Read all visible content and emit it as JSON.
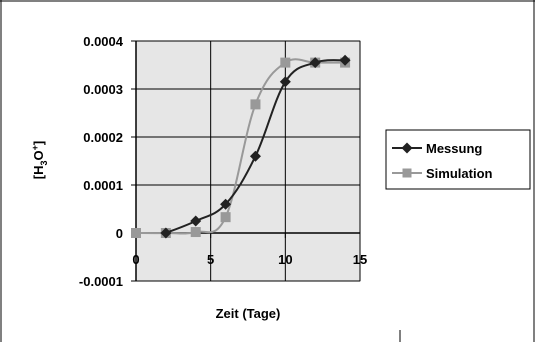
{
  "chart_data": {
    "type": "line",
    "xlabel": "Zeit (Tage)",
    "ylabel_main": "[H",
    "ylabel_sub": "3",
    "ylabel_mid": "O",
    "ylabel_sup": "+",
    "ylabel_end": "]",
    "xlim": [
      0,
      15
    ],
    "ylim": [
      -0.0001,
      0.0004
    ],
    "xticks": [
      0,
      5,
      10,
      15
    ],
    "xtick_labels": [
      "0",
      "5",
      "10",
      "15"
    ],
    "yticks": [
      -0.0001,
      0,
      0.0001,
      0.0002,
      0.0003,
      0.0004
    ],
    "ytick_labels": [
      "-0.0001",
      "0",
      "0.0001",
      "0.0002",
      "0.0003",
      "0.0004"
    ],
    "grid": true,
    "legend_position": "right",
    "series": [
      {
        "name": "Messung",
        "color": "#222222",
        "marker": "diamond",
        "x": [
          2,
          4,
          6,
          8,
          10,
          12,
          14
        ],
        "y": [
          0.0,
          2.5e-05,
          6e-05,
          0.00016,
          0.000315,
          0.000355,
          0.00036
        ]
      },
      {
        "name": "Simulation",
        "color": "#999999",
        "marker": "square",
        "x": [
          0,
          2,
          4,
          6,
          8,
          10,
          12,
          14
        ],
        "y": [
          0.0,
          0.0,
          2e-06,
          3.3e-05,
          0.000268,
          0.000355,
          0.000355,
          0.000355
        ]
      }
    ]
  }
}
